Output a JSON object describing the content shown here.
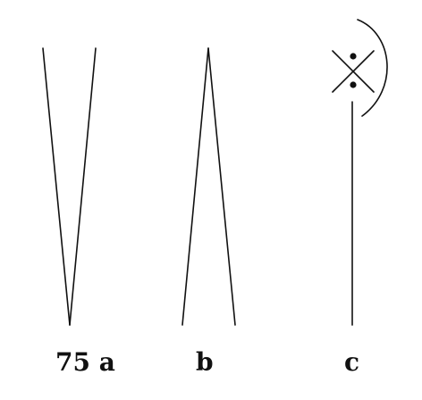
{
  "figure": {
    "labels": {
      "a": "75 a",
      "b": "b",
      "c": "c"
    }
  },
  "colors": {
    "ink": "#111111",
    "background": "#ffffff"
  }
}
